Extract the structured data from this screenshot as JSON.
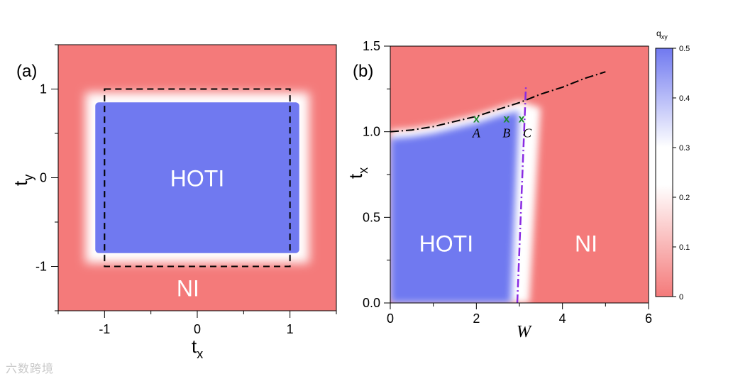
{
  "watermark": "六数跨境",
  "chart_data": [
    {
      "type": "heatmap",
      "panel_label": "(a)",
      "xlabel": "t",
      "xlabel_sub": "x",
      "ylabel": "t",
      "ylabel_sub": "y",
      "xlim": [
        -1.5,
        1.5
      ],
      "ylim": [
        -1.5,
        1.5
      ],
      "xticks": [
        -1,
        0,
        1
      ],
      "yticks": [
        -1,
        0,
        1
      ],
      "xtick_labels": [
        "-1",
        "0",
        "1"
      ],
      "ytick_labels": [
        "-1",
        "0",
        "1"
      ],
      "hoti_region": {
        "x": [
          -1.1,
          1.1
        ],
        "y": [
          -0.85,
          0.85
        ]
      },
      "dashed_box": {
        "x": [
          -1,
          1
        ],
        "y": [
          -1,
          1
        ]
      },
      "region_labels": [
        {
          "text": "HOTI",
          "x": 0,
          "y": 0
        },
        {
          "text": "NI",
          "x": -0.1,
          "y": -1.24
        }
      ]
    },
    {
      "type": "heatmap",
      "panel_label": "(b)",
      "xlabel": "W",
      "ylabel": "t",
      "ylabel_sub": "x",
      "xlim": [
        0,
        6
      ],
      "ylim": [
        0,
        1.5
      ],
      "xticks": [
        0,
        2,
        4,
        6
      ],
      "yticks": [
        0.0,
        0.5,
        1.0,
        1.5
      ],
      "xtick_labels": [
        "0",
        "2",
        "4",
        "6"
      ],
      "ytick_labels": [
        "0.0",
        "0.5",
        "1.0",
        "1.5"
      ],
      "boundary_curve": {
        "W": [
          0,
          0.5,
          1.0,
          1.5,
          2.0,
          2.5,
          3.0,
          3.5,
          4.0,
          4.5,
          5.0
        ],
        "tx": [
          1.0,
          1.01,
          1.03,
          1.06,
          1.09,
          1.13,
          1.17,
          1.22,
          1.26,
          1.31,
          1.35
        ]
      },
      "critical_line": {
        "W": [
          2.95,
          3.15
        ],
        "tx": [
          0.0,
          1.26
        ]
      },
      "points": [
        {
          "label": "A",
          "W": 2.0,
          "tx": 1.075,
          "marker": "x"
        },
        {
          "label": "B",
          "W": 2.7,
          "tx": 1.075,
          "marker": "x"
        },
        {
          "label": "C",
          "W": 3.05,
          "tx": 1.075,
          "marker": "x"
        }
      ],
      "region_labels": [
        {
          "text": "HOTI",
          "W": 1.3,
          "tx": 0.35
        },
        {
          "text": "NI",
          "W": 4.55,
          "tx": 0.35
        }
      ],
      "colorbar": {
        "label": "q",
        "label_sub": "xy",
        "range": [
          0,
          0.5
        ],
        "ticks": [
          0,
          0.1,
          0.2,
          0.3,
          0.4,
          0.5
        ],
        "tick_labels": [
          "0",
          "0.1",
          "0.2",
          "0.3",
          "0.4",
          "0.5"
        ],
        "low_color": "#f47a7a",
        "mid_color": "#ffffff",
        "high_color": "#7079f0"
      }
    }
  ],
  "colors": {
    "ni": "#f47a7a",
    "hoti": "#7079f0",
    "white": "#ffffff",
    "marker": "#1b8a2a",
    "critical": "#8a2be2"
  }
}
